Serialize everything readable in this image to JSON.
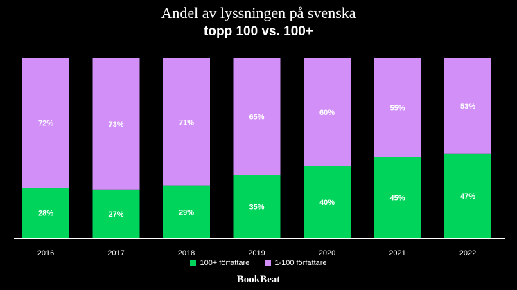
{
  "chart_data": {
    "type": "bar",
    "stacked": true,
    "title": "Andel av lyssningen på svenska",
    "subtitle": "topp 100 vs. 100+",
    "categories": [
      "2016",
      "2017",
      "2018",
      "2019",
      "2020",
      "2021",
      "2022"
    ],
    "series": [
      {
        "name": "100+ författare",
        "color": "#00d45a",
        "values": [
          28,
          27,
          29,
          35,
          40,
          45,
          47
        ],
        "labels": [
          "28%",
          "27%",
          "29%",
          "35%",
          "40%",
          "45%",
          "47%"
        ]
      },
      {
        "name": "1-100 författare",
        "color": "#d18ff7",
        "values": [
          72,
          73,
          71,
          65,
          60,
          55,
          53
        ],
        "labels": [
          "72%",
          "73%",
          "71%",
          "65%",
          "60%",
          "55%",
          "53%"
        ]
      }
    ],
    "ylim": [
      0,
      100
    ],
    "grid": false,
    "legend": "bottom-center"
  },
  "brand": "BookBeat"
}
